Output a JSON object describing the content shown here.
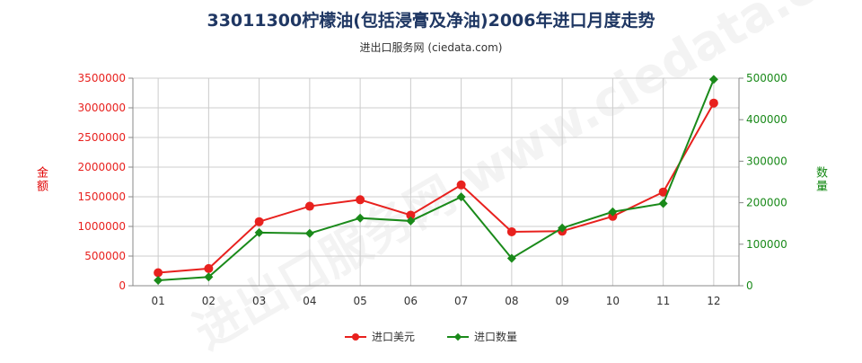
{
  "title": "33011300柠檬油(包括浸膏及净油)2006年进口月度走势",
  "subtitle": "进出口服务网 (ciedata.com)",
  "watermark": "进出口服务网 www.ciedata.com",
  "colors": {
    "amount": "#e8211e",
    "quantity": "#1a8a1a",
    "grid": "#cccccc"
  },
  "chart_data": {
    "type": "line",
    "categories": [
      "01",
      "02",
      "03",
      "04",
      "05",
      "06",
      "07",
      "08",
      "09",
      "10",
      "11",
      "12"
    ],
    "left_axis": {
      "label": "金额",
      "ylim": [
        0,
        3500000
      ],
      "ticks": [
        0,
        500000,
        1000000,
        1500000,
        2000000,
        2500000,
        3000000,
        3500000
      ]
    },
    "right_axis": {
      "label": "数量",
      "ylim": [
        0,
        500000
      ],
      "ticks": [
        0,
        100000,
        200000,
        300000,
        400000,
        500000
      ]
    },
    "series": [
      {
        "name": "进口美元",
        "axis": "left",
        "marker": "circle",
        "values": [
          220000,
          290000,
          1080000,
          1340000,
          1450000,
          1190000,
          1700000,
          910000,
          920000,
          1170000,
          1580000,
          3080000
        ]
      },
      {
        "name": "进口数量",
        "axis": "right",
        "marker": "diamond",
        "values": [
          13000,
          21000,
          128000,
          126000,
          163000,
          156000,
          214000,
          66000,
          139000,
          178000,
          198000,
          497000
        ]
      }
    ],
    "grid": true,
    "legend_position": "bottom"
  }
}
